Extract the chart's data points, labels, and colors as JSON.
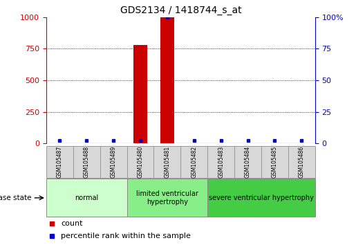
{
  "title": "GDS2134 / 1418744_s_at",
  "samples": [
    "GSM105487",
    "GSM105488",
    "GSM105489",
    "GSM105480",
    "GSM105481",
    "GSM105482",
    "GSM105483",
    "GSM105484",
    "GSM105485",
    "GSM105486"
  ],
  "counts": [
    0,
    0,
    0,
    780,
    1000,
    0,
    0,
    0,
    0,
    0
  ],
  "percentiles": [
    2,
    2,
    2,
    2,
    100,
    2,
    2,
    2,
    2,
    2
  ],
  "ylim_left": [
    0,
    1000
  ],
  "ylim_right": [
    0,
    100
  ],
  "yticks_left": [
    0,
    250,
    500,
    750,
    1000
  ],
  "yticks_right": [
    0,
    25,
    50,
    75,
    100
  ],
  "ytick_right_labels": [
    "0",
    "25",
    "50",
    "75",
    "100%"
  ],
  "bar_color": "#cc0000",
  "dot_color": "#0000cc",
  "groups": [
    {
      "label": "normal",
      "start": 0,
      "end": 3,
      "color": "#ccffcc"
    },
    {
      "label": "limited ventricular\nhypertrophy",
      "start": 3,
      "end": 6,
      "color": "#88ee88"
    },
    {
      "label": "severe ventricular hypertrophy",
      "start": 6,
      "end": 10,
      "color": "#44cc44"
    }
  ],
  "disease_state_label": "disease state",
  "legend_count_label": "count",
  "legend_percentile_label": "percentile rank within the sample",
  "bar_width": 0.5,
  "background_color": "#ffffff",
  "tick_label_color_left": "#cc0000",
  "tick_label_color_right": "#0000cc",
  "sample_box_color": "#d8d8d8",
  "sample_box_edge_color": "#999999"
}
